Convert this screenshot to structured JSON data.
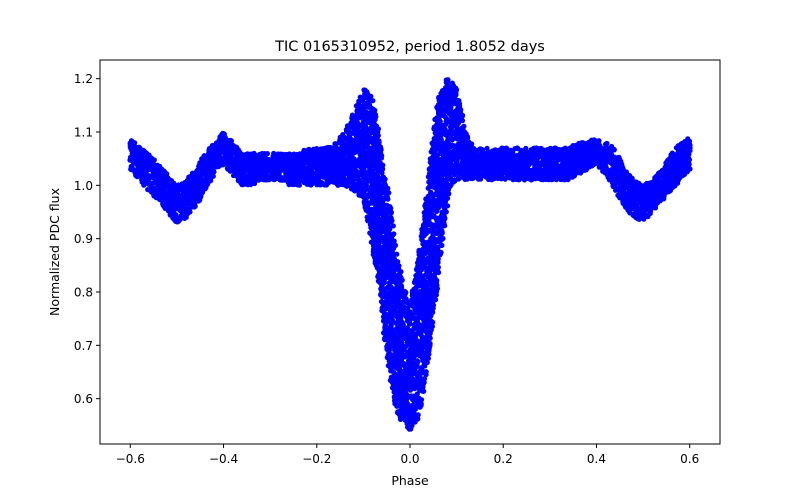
{
  "chart_data": {
    "type": "scatter",
    "title": "TIC 0165310952, period 1.8052 days",
    "xlabel": "Phase",
    "ylabel": "Normalized PDC flux",
    "xlim": [
      -0.665,
      0.665
    ],
    "ylim": [
      0.515,
      1.235
    ],
    "xticks": [
      -0.6,
      -0.4,
      -0.2,
      0.0,
      0.2,
      0.4,
      0.6
    ],
    "xtick_labels": [
      "−0.6",
      "−0.4",
      "−0.2",
      "0.0",
      "0.2",
      "0.4",
      "0.6"
    ],
    "yticks": [
      0.6,
      0.7,
      0.8,
      0.9,
      1.0,
      1.1,
      1.2
    ],
    "ytick_labels": [
      "0.6",
      "0.7",
      "0.8",
      "0.9",
      "1.0",
      "1.1",
      "1.2"
    ],
    "grid": false,
    "marker_color": "#0000ff",
    "series": [
      {
        "name": "",
        "x": [
          -0.6,
          -0.58,
          -0.56,
          -0.54,
          -0.52,
          -0.5,
          -0.48,
          -0.46,
          -0.44,
          -0.42,
          -0.4,
          -0.38,
          -0.36,
          -0.34,
          -0.32,
          -0.3,
          -0.28,
          -0.26,
          -0.24,
          -0.22,
          -0.2,
          -0.18,
          -0.16,
          -0.14,
          -0.12,
          -0.1,
          -0.09,
          -0.08,
          -0.07,
          -0.06,
          -0.05,
          -0.04,
          -0.03,
          -0.02,
          -0.01,
          0.0,
          0.01,
          0.02,
          0.03,
          0.04,
          0.05,
          0.06,
          0.07,
          0.08,
          0.09,
          0.1,
          0.12,
          0.14,
          0.16,
          0.18,
          0.2,
          0.22,
          0.24,
          0.26,
          0.28,
          0.3,
          0.32,
          0.34,
          0.36,
          0.38,
          0.4,
          0.42,
          0.44,
          0.46,
          0.48,
          0.5,
          0.52,
          0.54,
          0.56,
          0.58,
          0.6
        ],
        "upper": [
          1.09,
          1.07,
          1.06,
          1.04,
          1.02,
          1.0,
          1.01,
          1.03,
          1.06,
          1.08,
          1.1,
          1.08,
          1.06,
          1.06,
          1.06,
          1.06,
          1.06,
          1.06,
          1.06,
          1.07,
          1.07,
          1.07,
          1.08,
          1.1,
          1.14,
          1.18,
          1.18,
          1.16,
          1.12,
          1.06,
          1.01,
          0.95,
          0.89,
          0.84,
          0.8,
          0.78,
          0.82,
          0.88,
          0.95,
          1.02,
          1.1,
          1.16,
          1.19,
          1.2,
          1.2,
          1.18,
          1.1,
          1.07,
          1.07,
          1.07,
          1.07,
          1.07,
          1.07,
          1.07,
          1.07,
          1.07,
          1.07,
          1.07,
          1.08,
          1.08,
          1.09,
          1.08,
          1.07,
          1.03,
          1.01,
          1.0,
          1.01,
          1.03,
          1.06,
          1.08,
          1.09
        ],
        "lower": [
          1.03,
          1.01,
          0.99,
          0.97,
          0.95,
          0.93,
          0.94,
          0.96,
          0.99,
          1.02,
          1.04,
          1.02,
          1.0,
          1.0,
          1.01,
          1.01,
          1.01,
          1.0,
          1.0,
          1.0,
          1.0,
          1.0,
          1.0,
          1.0,
          0.99,
          0.97,
          0.93,
          0.88,
          0.82,
          0.75,
          0.68,
          0.62,
          0.58,
          0.56,
          0.55,
          0.54,
          0.55,
          0.57,
          0.61,
          0.67,
          0.74,
          0.82,
          0.9,
          0.96,
          1.0,
          1.01,
          1.01,
          1.01,
          1.01,
          1.01,
          1.01,
          1.01,
          1.01,
          1.01,
          1.01,
          1.01,
          1.01,
          1.01,
          1.02,
          1.03,
          1.04,
          1.02,
          0.99,
          0.96,
          0.94,
          0.93,
          0.95,
          0.97,
          0.99,
          1.01,
          1.03
        ]
      }
    ]
  }
}
